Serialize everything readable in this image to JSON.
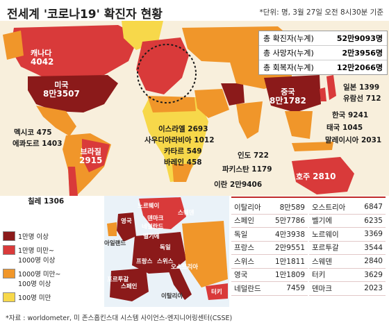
{
  "title": "전세계 '코로나19' 확진자 현황",
  "unit_note": "*단위: 명, 3월 27일 오전 8시30분 기준",
  "totals": [
    {
      "label": "총 확진자(누계)",
      "value": "52만9093명"
    },
    {
      "label": "총 사망자(누계)",
      "value": "2만3956명"
    },
    {
      "label": "총 회복자(누계)",
      "value": "12만2066명"
    }
  ],
  "world_labels": {
    "canada": {
      "name": "캐나다",
      "value": "4042"
    },
    "usa": {
      "name": "미국",
      "value": "8만3507"
    },
    "mexico": "멕시코 475",
    "ecuador": "에콰도르 1403",
    "brazil": {
      "name": "브라질",
      "value": "2915"
    },
    "chile": "칠레 1306",
    "israel": "이스라엘 2693",
    "saudi": "사우디아라비아 1012",
    "qatar": "카타르 549",
    "bahrain": "바레인 458",
    "iran": "이란 2만9406",
    "india": "인도 722",
    "pakistan": "파키스탄 1179",
    "china": {
      "name": "중국",
      "value": "8만1782"
    },
    "japan": "일본 1399",
    "cruise": "유람선 712",
    "korea": "한국 9241",
    "thailand": "태국 1045",
    "malaysia": "말레이시아 2031",
    "australia": {
      "name": "호주",
      "value": "2810"
    }
  },
  "europe_labels": {
    "norway": "노르웨이",
    "sweden": "스웨덴",
    "denmark": "덴마크",
    "uk": "영국",
    "netherlands": "네덜란드",
    "belgium": "벨기에",
    "ireland": "아일랜드",
    "germany": "독일",
    "france": "프랑스",
    "switzerland": "스위스",
    "austria": "오스트리아",
    "spain": "스페인",
    "portugal": "포르투갈",
    "italy": "이탈리아",
    "turkey": "터키"
  },
  "legend": [
    {
      "label": "1만명 이상",
      "color": "#8b1a1a"
    },
    {
      "label": "1만명 미만~ 1000명 이상",
      "color": "#d93a3a"
    },
    {
      "label": "1000명 미만~ 100명 이상",
      "color": "#f0962a"
    },
    {
      "label": "100명 미만",
      "color": "#f7d84a"
    }
  ],
  "europe_table": {
    "left": [
      {
        "country": "이탈리아",
        "value": "8만589"
      },
      {
        "country": "스페인",
        "value": "5만7786"
      },
      {
        "country": "독일",
        "value": "4만3938"
      },
      {
        "country": "프랑스",
        "value": "2만9551"
      },
      {
        "country": "스위스",
        "value": "1만1811"
      },
      {
        "country": "영국",
        "value": "1만1809"
      },
      {
        "country": "네덜란드",
        "value": "7459"
      }
    ],
    "right": [
      {
        "country": "오스트리아",
        "value": "6847"
      },
      {
        "country": "벨기에",
        "value": "6235"
      },
      {
        "country": "노르웨이",
        "value": "3369"
      },
      {
        "country": "포르투갈",
        "value": "3544"
      },
      {
        "country": "스웨덴",
        "value": "2840"
      },
      {
        "country": "터키",
        "value": "3629"
      },
      {
        "country": "덴마크",
        "value": "2023"
      }
    ]
  },
  "source": "*자료 : worldometer, 미 존스홉킨스대 시스템 사이언스-엔지니어링센터(CSSE)",
  "colors": {
    "ocean": "#f8efdc",
    "tier1": "#8b1a1a",
    "tier2": "#d93a3a",
    "tier3": "#f0962a",
    "tier4": "#f7d84a"
  }
}
